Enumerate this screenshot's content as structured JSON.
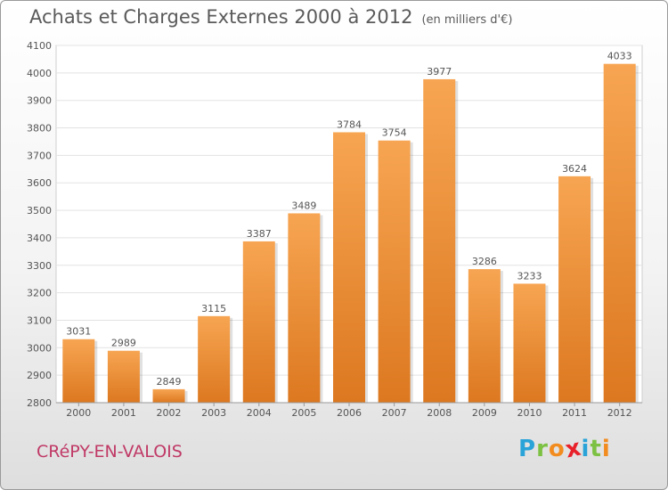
{
  "header": {
    "title": "Achats et Charges Externes 2000 à 2012",
    "unit": "(en milliers d'€)"
  },
  "footer": {
    "commune": "CRéPY-EN-VALOIS",
    "logo_letters": [
      "P",
      "r",
      "o",
      "x",
      "i",
      "t",
      "i"
    ],
    "logo_colors": [
      "#2aa3d8",
      "#7cc142",
      "#f28c1f",
      "#e8202a",
      "#2aa3d8",
      "#7cc142",
      "#f28c1f"
    ]
  },
  "colors": {
    "bar_top": "#f7a552",
    "bar_bottom": "#dc7820",
    "text": "#555555",
    "grid": "#e3e3e3"
  },
  "chart_data": {
    "type": "bar",
    "title": "Achats et Charges Externes 2000 à 2012",
    "subtitle": "(en milliers d'€)",
    "categories": [
      "2000",
      "2001",
      "2002",
      "2003",
      "2004",
      "2005",
      "2006",
      "2007",
      "2008",
      "2009",
      "2010",
      "2011",
      "2012"
    ],
    "values": [
      3031,
      2989,
      2849,
      3115,
      3387,
      3489,
      3784,
      3754,
      3977,
      3286,
      3233,
      3624,
      4033
    ],
    "ylim": [
      2800,
      4100
    ],
    "yticks": [
      2800,
      2900,
      3000,
      3100,
      3200,
      3300,
      3400,
      3500,
      3600,
      3700,
      3800,
      3900,
      4000,
      4100
    ],
    "grid": true,
    "legend": "none"
  }
}
